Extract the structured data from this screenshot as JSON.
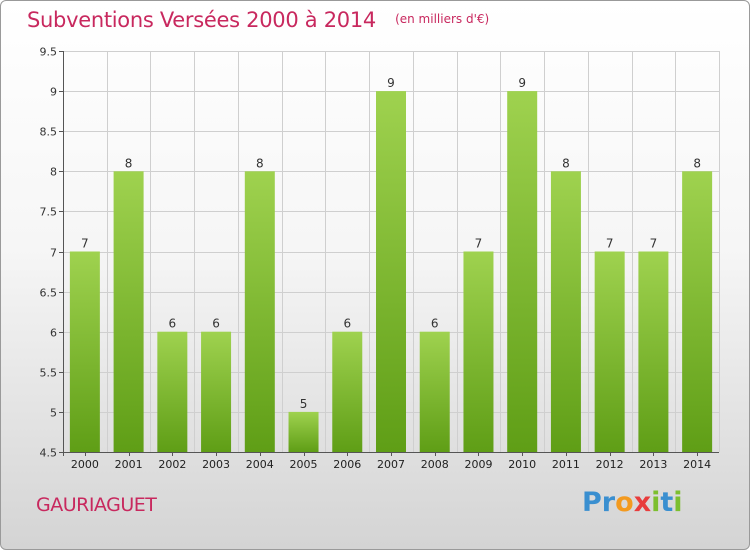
{
  "title": "Subventions Versées 2000 à 2014",
  "subtitle": "(en milliers d'€)",
  "commune": "GAURIAGUET",
  "logo": {
    "text": "Proxiti",
    "letters": [
      {
        "ch": "P",
        "color": "#3a8fd0"
      },
      {
        "ch": "r",
        "color": "#3a8fd0"
      },
      {
        "ch": "o",
        "color": "#f39a1f"
      },
      {
        "ch": "x",
        "color": "#e83c3c"
      },
      {
        "ch": "i",
        "color": "#7cbf2e"
      },
      {
        "ch": "t",
        "color": "#3a8fd0"
      },
      {
        "ch": "i",
        "color": "#7cbf2e"
      }
    ]
  },
  "colors": {
    "bar_top": "#9fd24f",
    "bar_bottom": "#5f9e16",
    "title": "#c8285e",
    "grid": "#cfcfcf",
    "axis": "#555555"
  },
  "chart_data": {
    "type": "bar",
    "title": "Subventions Versées 2000 à 2014",
    "subtitle": "(en milliers d'€)",
    "categories": [
      "2000",
      "2001",
      "2002",
      "2003",
      "2004",
      "2005",
      "2006",
      "2007",
      "2008",
      "2009",
      "2010",
      "2011",
      "2012",
      "2013",
      "2014"
    ],
    "values": [
      7,
      8,
      6,
      6,
      8,
      5,
      6,
      9,
      6,
      7,
      9,
      8,
      7,
      7,
      8
    ],
    "ylim": [
      4.5,
      9.5
    ],
    "yticks": [
      "4.5",
      "5",
      "5.5",
      "6",
      "6.5",
      "7",
      "7.5",
      "8",
      "8.5",
      "9",
      "9.5"
    ],
    "grid": true,
    "legend": "none",
    "xlabel": "",
    "ylabel": ""
  }
}
